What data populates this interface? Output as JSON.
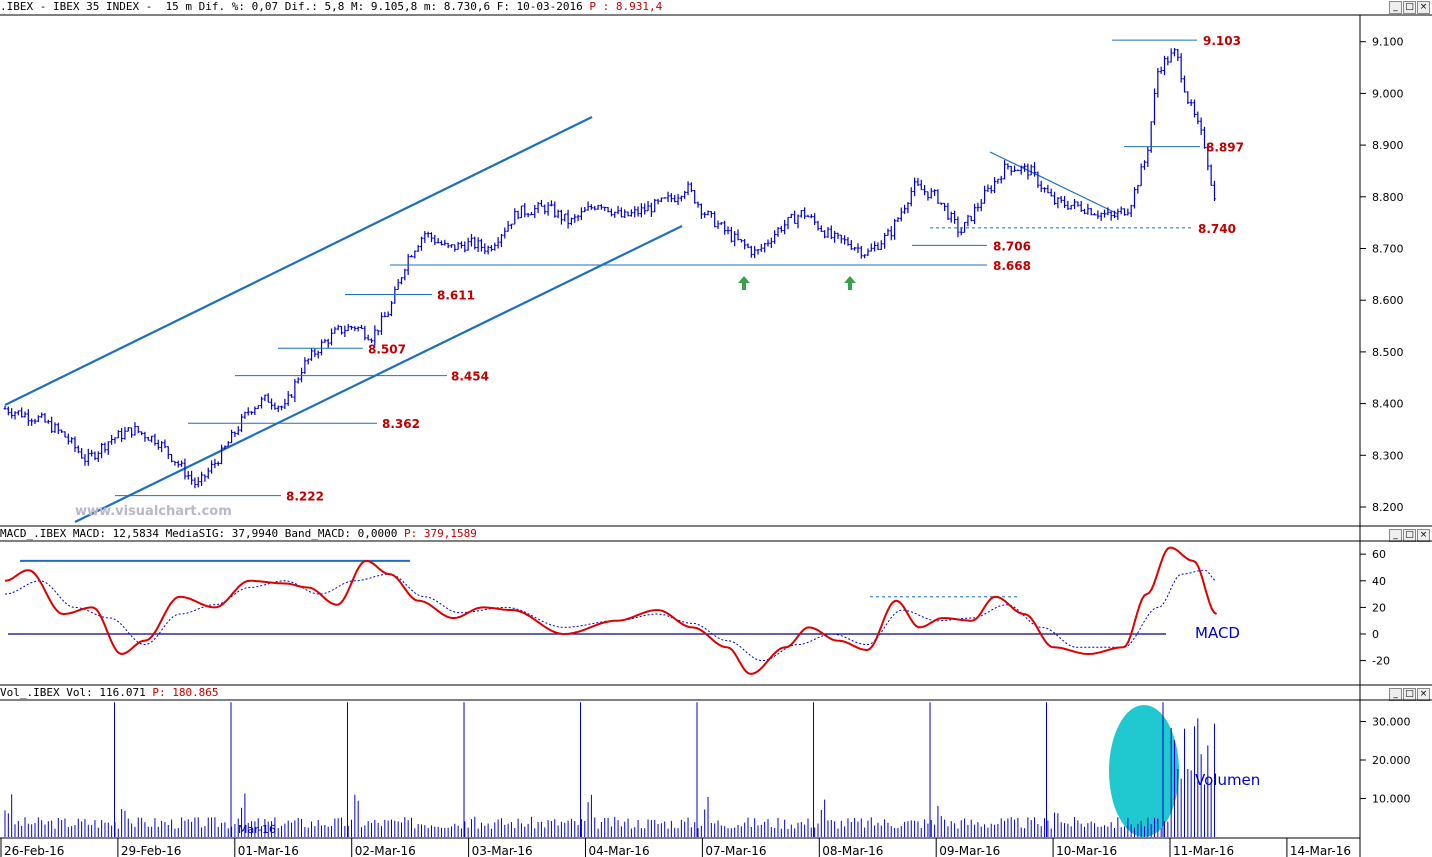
{
  "panels": {
    "price": {
      "header": {
        "prefix": ".IBEX - IBEX 35 INDEX -  15 m Dif. %: 0,07 Dif.: 5,8 M: 9.105,8 m: 8.730,6 F: 10-03-2016 ",
        "p_label": "P : 8.931,4"
      },
      "watermark": "www.visualchart.com"
    },
    "macd": {
      "header": {
        "prefix": "MACD_.IBEX MACD: 12,5834 MediaSIG: 37,9940 Band_MACD: 0,0000 ",
        "p_label": "P: 379,1589"
      },
      "label": "MACD"
    },
    "volume": {
      "header": {
        "prefix": "Vol_.IBEX Vol: 116.071 ",
        "p_label": "P: 180.865"
      },
      "label": "Volumen",
      "mid_label": "Mar-16"
    }
  },
  "window_buttons": [
    "_",
    "□",
    "×"
  ],
  "colors": {
    "price_bars": "#0000cc",
    "trendline": "#1f6fbf",
    "level_label": "#c00000",
    "macd_line": "#dd0000",
    "signal_line": "#0000cc",
    "volume_bars": "#0000cc",
    "highlight": "#20c8d0",
    "arrow": "#3aa04a"
  },
  "chart_data": [
    {
      "type": "candlestick",
      "title": "IBEX 35 INDEX 15 m",
      "x_labels": [
        "26-Feb-16",
        "29-Feb-16",
        "01-Mar-16",
        "02-Mar-16",
        "03-Mar-16",
        "04-Mar-16",
        "07-Mar-16",
        "08-Mar-16",
        "09-Mar-16",
        "10-Mar-16",
        "11-Mar-16",
        "14-Mar-16"
      ],
      "y_ticks": [
        "8.200",
        "8.300",
        "8.400",
        "8.500",
        "8.600",
        "8.700",
        "8.800",
        "8.900",
        "9.000",
        "9.100"
      ],
      "ylim": [
        8150,
        9150
      ],
      "levels": [
        {
          "value": 9103,
          "label": "9.103"
        },
        {
          "value": 8897,
          "label": "8.897"
        },
        {
          "value": 8740,
          "label": "8.740",
          "style": "dashed"
        },
        {
          "value": 8706,
          "label": "8.706"
        },
        {
          "value": 8668,
          "label": "8.668"
        },
        {
          "value": 8611,
          "label": "8.611"
        },
        {
          "value": 8507,
          "label": "8.507"
        },
        {
          "value": 8454,
          "label": "8.454"
        },
        {
          "value": 8362,
          "label": "8.362"
        },
        {
          "value": 8222,
          "label": "8.222"
        }
      ],
      "series": [
        {
          "name": "close",
          "points": [
            [
              0,
              8390
            ],
            [
              0.3,
              8370
            ],
            [
              0.5,
              8340
            ],
            [
              0.7,
              8290
            ],
            [
              0.9,
              8330
            ],
            [
              1.1,
              8350
            ],
            [
              1.3,
              8330
            ],
            [
              1.5,
              8280
            ],
            [
              1.65,
              8240
            ],
            [
              1.85,
              8300
            ],
            [
              2.1,
              8390
            ],
            [
              2.25,
              8410
            ],
            [
              2.4,
              8390
            ],
            [
              2.55,
              8470
            ],
            [
              2.7,
              8510
            ],
            [
              2.85,
              8540
            ],
            [
              3.0,
              8550
            ],
            [
              3.15,
              8530
            ],
            [
              3.3,
              8580
            ],
            [
              3.45,
              8680
            ],
            [
              3.6,
              8730
            ],
            [
              3.8,
              8700
            ],
            [
              4.0,
              8710
            ],
            [
              4.15,
              8700
            ],
            [
              4.4,
              8770
            ],
            [
              4.65,
              8780
            ],
            [
              4.85,
              8750
            ],
            [
              5.1,
              8790
            ],
            [
              5.3,
              8760
            ],
            [
              5.55,
              8780
            ],
            [
              5.75,
              8800
            ],
            [
              5.85,
              8820
            ],
            [
              6.0,
              8770
            ],
            [
              6.25,
              8720
            ],
            [
              6.45,
              8690
            ],
            [
              6.65,
              8740
            ],
            [
              6.85,
              8770
            ],
            [
              7.1,
              8720
            ],
            [
              7.25,
              8710
            ],
            [
              7.4,
              8690
            ],
            [
              7.6,
              8730
            ],
            [
              7.8,
              8820
            ],
            [
              8.0,
              8800
            ],
            [
              8.2,
              8730
            ],
            [
              8.4,
              8800
            ],
            [
              8.6,
              8860
            ],
            [
              8.8,
              8850
            ],
            [
              9.0,
              8790
            ],
            [
              9.25,
              8780
            ],
            [
              9.5,
              8760
            ],
            [
              9.65,
              8780
            ],
            [
              9.8,
              8880
            ],
            [
              9.9,
              9050
            ],
            [
              10.05,
              9080
            ],
            [
              10.15,
              8990
            ],
            [
              10.3,
              8900
            ],
            [
              10.4,
              8770
            ]
          ]
        }
      ]
    },
    {
      "type": "line",
      "title": "MACD",
      "y_ticks": [
        "60",
        "40",
        "20",
        "0",
        "-20"
      ],
      "ylim": [
        -40,
        70
      ],
      "series": [
        {
          "name": "MACD",
          "points": [
            [
              0,
              40
            ],
            [
              0.2,
              48
            ],
            [
              0.5,
              15
            ],
            [
              0.75,
              20
            ],
            [
              1.0,
              -15
            ],
            [
              1.2,
              -5
            ],
            [
              1.5,
              28
            ],
            [
              1.8,
              20
            ],
            [
              2.1,
              40
            ],
            [
              2.4,
              38
            ],
            [
              2.6,
              35
            ],
            [
              2.85,
              22
            ],
            [
              3.1,
              55
            ],
            [
              3.3,
              45
            ],
            [
              3.55,
              25
            ],
            [
              3.85,
              12
            ],
            [
              4.1,
              20
            ],
            [
              4.35,
              18
            ],
            [
              4.8,
              0
            ],
            [
              5.25,
              10
            ],
            [
              5.6,
              18
            ],
            [
              5.9,
              5
            ],
            [
              6.2,
              -10
            ],
            [
              6.4,
              -30
            ],
            [
              6.7,
              -10
            ],
            [
              6.9,
              5
            ],
            [
              7.15,
              -5
            ],
            [
              7.4,
              -12
            ],
            [
              7.65,
              25
            ],
            [
              7.85,
              5
            ],
            [
              8.05,
              12
            ],
            [
              8.3,
              10
            ],
            [
              8.5,
              28
            ],
            [
              8.75,
              15
            ],
            [
              9.0,
              -10
            ],
            [
              9.3,
              -15
            ],
            [
              9.6,
              -10
            ],
            [
              9.8,
              30
            ],
            [
              10.0,
              65
            ],
            [
              10.2,
              55
            ],
            [
              10.4,
              15
            ]
          ]
        },
        {
          "name": "MediaSIG",
          "points": [
            [
              0,
              30
            ],
            [
              0.3,
              40
            ],
            [
              0.6,
              20
            ],
            [
              0.9,
              12
            ],
            [
              1.2,
              -8
            ],
            [
              1.5,
              15
            ],
            [
              1.8,
              22
            ],
            [
              2.1,
              35
            ],
            [
              2.4,
              40
            ],
            [
              2.7,
              30
            ],
            [
              3.0,
              40
            ],
            [
              3.3,
              45
            ],
            [
              3.6,
              28
            ],
            [
              3.9,
              16
            ],
            [
              4.3,
              20
            ],
            [
              4.8,
              5
            ],
            [
              5.25,
              10
            ],
            [
              5.6,
              15
            ],
            [
              5.9,
              8
            ],
            [
              6.2,
              -5
            ],
            [
              6.5,
              -20
            ],
            [
              6.8,
              -8
            ],
            [
              7.1,
              0
            ],
            [
              7.4,
              -8
            ],
            [
              7.7,
              18
            ],
            [
              8.0,
              10
            ],
            [
              8.3,
              12
            ],
            [
              8.6,
              22
            ],
            [
              8.9,
              5
            ],
            [
              9.2,
              -10
            ],
            [
              9.6,
              -10
            ],
            [
              9.9,
              20
            ],
            [
              10.1,
              45
            ],
            [
              10.3,
              48
            ],
            [
              10.4,
              40
            ]
          ]
        }
      ],
      "hlines": [
        0,
        55,
        28
      ]
    },
    {
      "type": "bar",
      "title": "Vol",
      "y_ticks": [
        "10.000",
        "20.000",
        "30.000"
      ],
      "ylim": [
        0,
        35000
      ],
      "session_spikes": [
        35000,
        35000,
        35000,
        35000,
        35000,
        35000,
        35000,
        35000,
        35000,
        35000
      ],
      "series": [
        {
          "name": "Vol",
          "typical": 3500
        }
      ]
    }
  ]
}
